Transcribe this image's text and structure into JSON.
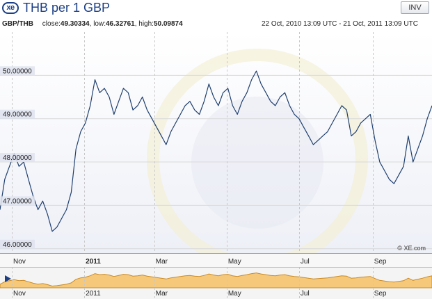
{
  "header": {
    "logo": "xe",
    "title": "THB per 1 GBP",
    "inv_label": "INV"
  },
  "stats": {
    "pair": "GBP/THB",
    "close_label": "close:",
    "close_value": "49.30334",
    "low_label": "low:",
    "low_value": "46.32761",
    "high_label": "high:",
    "high_value": "50.09874",
    "range": "22 Oct, 2010 13:09 UTC - 21 Oct, 2011 13:09 UTC"
  },
  "watermark": "© XE.com",
  "colors": {
    "line": "#1f3f6e",
    "navigator_fill": "#f6c97a",
    "navigator_stroke": "#c98a26",
    "gridline": "#d9d9d9",
    "label_bg": "#dfe3ee"
  },
  "icons": {
    "play": "play-icon",
    "logo": "xe-logo-icon"
  },
  "chart_data": {
    "type": "line",
    "title": "THB per 1 GBP",
    "xlabel": "",
    "ylabel": "",
    "x_range": [
      "2010-10-22",
      "2011-10-21"
    ],
    "ylim": [
      45.9,
      51.0
    ],
    "yticks": [
      {
        "value": 46.0,
        "label": "46.00000"
      },
      {
        "value": 47.0,
        "label": "47.00000"
      },
      {
        "value": 48.0,
        "label": "48.00000"
      },
      {
        "value": 49.0,
        "label": "49.00000"
      },
      {
        "value": 50.0,
        "label": "50.00000"
      }
    ],
    "xticks": [
      {
        "date": "2010-11-01",
        "label": "Nov",
        "bold": false
      },
      {
        "date": "2011-01-01",
        "label": "2011",
        "bold": true
      },
      {
        "date": "2011-03-01",
        "label": "Mar",
        "bold": false
      },
      {
        "date": "2011-05-01",
        "label": "May",
        "bold": false
      },
      {
        "date": "2011-07-01",
        "label": "Jul",
        "bold": false
      },
      {
        "date": "2011-09-01",
        "label": "Sep",
        "bold": false
      }
    ],
    "grid": true,
    "series": [
      {
        "x": [
          "2010-10-22",
          "2010-10-26",
          "2010-10-30",
          "2010-11-03",
          "2010-11-07",
          "2010-11-11",
          "2010-11-15",
          "2010-11-19",
          "2010-11-23",
          "2010-11-27",
          "2010-12-01",
          "2010-12-05",
          "2010-12-09",
          "2010-12-13",
          "2010-12-17",
          "2010-12-21",
          "2010-12-25",
          "2010-12-29",
          "2011-01-02",
          "2011-01-06",
          "2011-01-10",
          "2011-01-14",
          "2011-01-18",
          "2011-01-22",
          "2011-01-26",
          "2011-01-30",
          "2011-02-03",
          "2011-02-07",
          "2011-02-11",
          "2011-02-15",
          "2011-02-19",
          "2011-02-23",
          "2011-02-27",
          "2011-03-03",
          "2011-03-07",
          "2011-03-11",
          "2011-03-15",
          "2011-03-19",
          "2011-03-23",
          "2011-03-27",
          "2011-03-31",
          "2011-04-04",
          "2011-04-08",
          "2011-04-12",
          "2011-04-16",
          "2011-04-20",
          "2011-04-24",
          "2011-04-28",
          "2011-05-02",
          "2011-05-06",
          "2011-05-10",
          "2011-05-14",
          "2011-05-18",
          "2011-05-22",
          "2011-05-26",
          "2011-05-30",
          "2011-06-03",
          "2011-06-07",
          "2011-06-11",
          "2011-06-15",
          "2011-06-19",
          "2011-06-23",
          "2011-06-27",
          "2011-07-01",
          "2011-07-05",
          "2011-07-09",
          "2011-07-13",
          "2011-07-17",
          "2011-07-21",
          "2011-07-25",
          "2011-07-29",
          "2011-08-02",
          "2011-08-06",
          "2011-08-10",
          "2011-08-14",
          "2011-08-18",
          "2011-08-22",
          "2011-08-26",
          "2011-08-30",
          "2011-09-03",
          "2011-09-07",
          "2011-09-11",
          "2011-09-15",
          "2011-09-19",
          "2011-09-23",
          "2011-09-27",
          "2011-10-01",
          "2011-10-05",
          "2011-10-09",
          "2011-10-13",
          "2011-10-17",
          "2011-10-21"
        ],
        "y": [
          46.9,
          47.6,
          47.9,
          48.2,
          47.9,
          48.0,
          47.6,
          47.2,
          46.9,
          47.1,
          46.8,
          46.4,
          46.5,
          46.7,
          46.9,
          47.3,
          48.3,
          48.7,
          48.9,
          49.3,
          49.9,
          49.6,
          49.7,
          49.5,
          49.1,
          49.4,
          49.7,
          49.6,
          49.2,
          49.3,
          49.5,
          49.2,
          49.0,
          48.8,
          48.6,
          48.4,
          48.7,
          48.9,
          49.1,
          49.3,
          49.4,
          49.2,
          49.1,
          49.4,
          49.8,
          49.5,
          49.3,
          49.6,
          49.7,
          49.3,
          49.1,
          49.4,
          49.6,
          49.9,
          50.1,
          49.8,
          49.6,
          49.4,
          49.3,
          49.5,
          49.6,
          49.3,
          49.1,
          49.0,
          48.8,
          48.6,
          48.4,
          48.5,
          48.6,
          48.7,
          48.9,
          49.1,
          49.3,
          49.2,
          48.6,
          48.7,
          48.9,
          49.0,
          49.1,
          48.5,
          48.0,
          47.8,
          47.6,
          47.5,
          47.7,
          47.9,
          48.6,
          48.0,
          48.3,
          48.6,
          49.0,
          49.3
        ]
      }
    ]
  }
}
